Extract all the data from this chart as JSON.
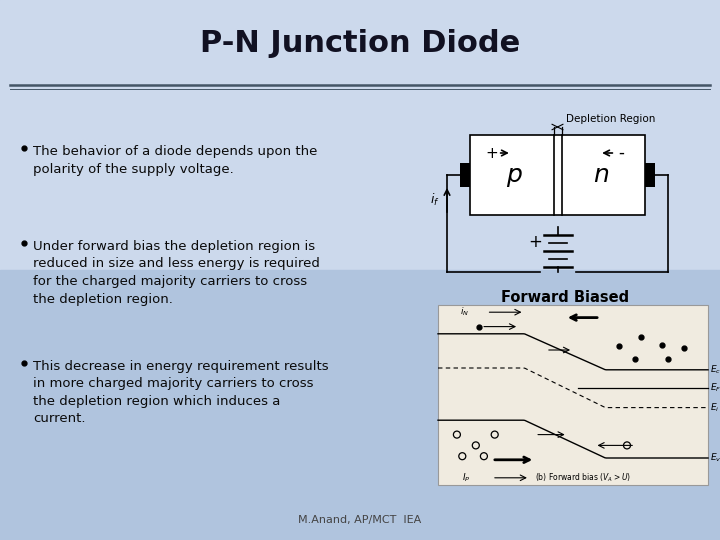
{
  "title": "P-N Junction Diode",
  "slide_bg_top": "#c8d8ec",
  "slide_bg_bot": "#a8bedc",
  "title_color": "#111122",
  "bullet_points": [
    "The behavior of a diode depends upon the\npolarity of the supply voltage.",
    "Under forward bias the depletion region is\nreduced in size and less energy is required\nfor the charged majority carriers to cross\nthe depletion region.",
    "This decrease in energy requirement results\nin more charged majority carriers to cross\nthe depletion region which induces a\ncurrent."
  ],
  "depletion_label": "Depletion Region",
  "p_label": "p",
  "n_label": "n",
  "current_label": "i_f",
  "forward_biased_label": "Forward Biased",
  "footer": "M.Anand, AP/MCT  IEA",
  "title_fontsize": 22,
  "bullet_fontsize": 9.5,
  "footer_fontsize": 8
}
